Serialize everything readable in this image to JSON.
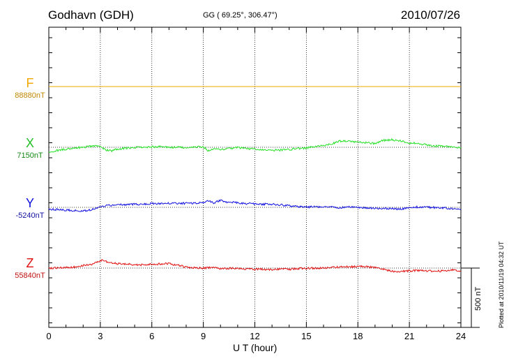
{
  "header": {
    "station": "Godhavn (GDH)",
    "coords": "GG ( 69.25°, 306.47°)",
    "date": "2010/07/26"
  },
  "footer": {
    "plotted": "Plotted at 2010/11/19 04:32 UT",
    "scale_label": "500 nT"
  },
  "chart_data": {
    "type": "line",
    "title": "",
    "xlabel": "U T (hour)",
    "ylabel": "",
    "xlim": [
      0,
      24
    ],
    "x_ticks": [
      "0",
      "3",
      "6",
      "9",
      "12",
      "15",
      "18",
      "21",
      "24"
    ],
    "grid": true,
    "scale_bar_nT": 500,
    "series": [
      {
        "name": "F",
        "baseline_label": "88880nT",
        "color": "#f0a800",
        "x": [
          0,
          24
        ],
        "values": [
          88880,
          88880
        ]
      },
      {
        "name": "X",
        "baseline_label": "7150nT",
        "color": "#22e022",
        "x": [
          0,
          0.5,
          1,
          1.5,
          2,
          2.5,
          3,
          3.3,
          3.6,
          3.9,
          4.2,
          4.6,
          5,
          5.5,
          6,
          6.5,
          7,
          7.5,
          8,
          8.5,
          9,
          9.3,
          9.6,
          10,
          10.5,
          11,
          11.5,
          12,
          12.5,
          13,
          13.5,
          14,
          14.5,
          15,
          15.5,
          16,
          16.5,
          17,
          17.5,
          18,
          18.5,
          19,
          19.5,
          20,
          20.5,
          21,
          21.5,
          22,
          22.5,
          23,
          23.5,
          24
        ],
        "values": [
          7110,
          7125,
          7135,
          7145,
          7150,
          7160,
          7155,
          7130,
          7120,
          7135,
          7140,
          7145,
          7150,
          7148,
          7152,
          7155,
          7148,
          7150,
          7145,
          7152,
          7155,
          7120,
          7140,
          7130,
          7140,
          7150,
          7140,
          7135,
          7130,
          7128,
          7128,
          7132,
          7140,
          7145,
          7155,
          7165,
          7180,
          7200,
          7195,
          7190,
          7185,
          7180,
          7205,
          7210,
          7200,
          7185,
          7180,
          7170,
          7160,
          7158,
          7152,
          7145
        ]
      },
      {
        "name": "Y",
        "baseline_label": "-5240nT",
        "color": "#1010e0",
        "x": [
          0,
          0.5,
          1,
          1.5,
          2,
          2.3,
          2.6,
          3,
          3.5,
          4,
          4.5,
          5,
          5.5,
          6,
          6.5,
          7,
          7.5,
          8,
          8.5,
          9,
          9.3,
          9.6,
          10,
          10.3,
          10.6,
          11,
          11.5,
          12,
          12.5,
          13,
          13.5,
          14,
          14.5,
          15,
          15.5,
          16,
          16.5,
          17,
          17.5,
          18,
          18.5,
          19,
          19.5,
          20,
          20.5,
          21,
          21.5,
          22,
          22.5,
          23,
          23.5,
          24
        ],
        "values": [
          -5255,
          -5258,
          -5262,
          -5265,
          -5270,
          -5265,
          -5255,
          -5235,
          -5225,
          -5220,
          -5218,
          -5215,
          -5215,
          -5210,
          -5212,
          -5208,
          -5210,
          -5208,
          -5205,
          -5200,
          -5190,
          -5205,
          -5185,
          -5200,
          -5195,
          -5205,
          -5210,
          -5212,
          -5215,
          -5215,
          -5220,
          -5228,
          -5235,
          -5238,
          -5236,
          -5240,
          -5238,
          -5242,
          -5238,
          -5240,
          -5243,
          -5246,
          -5250,
          -5248,
          -5255,
          -5240,
          -5238,
          -5240,
          -5242,
          -5245,
          -5250,
          -5258
        ]
      },
      {
        "name": "Z",
        "baseline_label": "55840nT",
        "color": "#e01010",
        "x": [
          0,
          0.5,
          1,
          1.5,
          2,
          2.5,
          2.8,
          3.1,
          3.4,
          3.7,
          4,
          4.5,
          5,
          5.5,
          6,
          6.5,
          6.8,
          7.2,
          7.6,
          8,
          8.5,
          9,
          9.5,
          10,
          10.5,
          11,
          11.5,
          12,
          12.5,
          13,
          13.5,
          14,
          14.5,
          15,
          15.5,
          16,
          16.5,
          17,
          17.5,
          18,
          18.5,
          19,
          19.5,
          20,
          20.5,
          21,
          21.5,
          22,
          22.5,
          23,
          23.5,
          24
        ],
        "values": [
          55840,
          55842,
          55845,
          55848,
          55860,
          55870,
          55885,
          55905,
          55890,
          55880,
          55875,
          55870,
          55868,
          55865,
          55870,
          55872,
          55880,
          55870,
          55860,
          55848,
          55842,
          55840,
          55845,
          55835,
          55838,
          55835,
          55832,
          55830,
          55830,
          55828,
          55832,
          55830,
          55836,
          55838,
          55840,
          55842,
          55845,
          55848,
          55850,
          55852,
          55850,
          55845,
          55830,
          55815,
          55812,
          55818,
          55820,
          55818,
          55815,
          55818,
          55825,
          55815
        ]
      }
    ]
  }
}
